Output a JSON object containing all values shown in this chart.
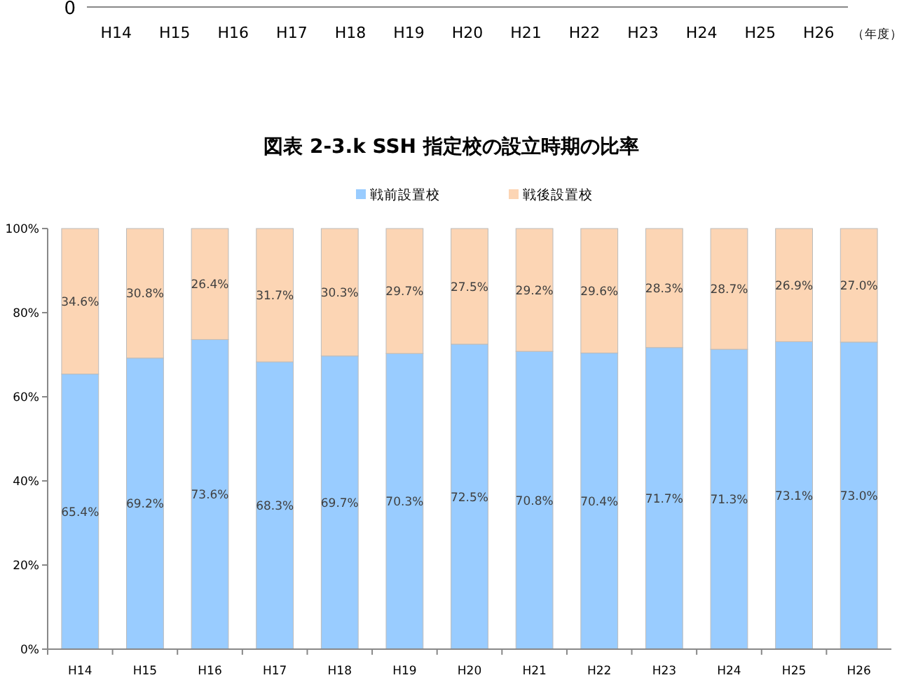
{
  "chart_data": [
    {
      "type": "other",
      "annotations": [
        "0",
        "H14",
        "H15",
        "H16",
        "H17",
        "H18",
        "H19",
        "H20",
        "H21",
        "H22",
        "H23",
        "H24",
        "H25",
        "H26",
        "（年度）"
      ]
    },
    {
      "type": "bar",
      "stacked": true,
      "title": "図表 2-3.k SSH 指定校の設立時期の比率",
      "legend": "top",
      "categories": [
        "H14",
        "H15",
        "H16",
        "H17",
        "H18",
        "H19",
        "H20",
        "H21",
        "H22",
        "H23",
        "H24",
        "H25",
        "H26"
      ],
      "ylim": [
        0,
        100
      ],
      "yticks": [
        {
          "value": 0,
          "label": "0%"
        },
        {
          "value": 20,
          "label": "20%"
        },
        {
          "value": 40,
          "label": "40%"
        },
        {
          "value": 60,
          "label": "60%"
        },
        {
          "value": 80,
          "label": "80%"
        },
        {
          "value": 100,
          "label": "100%"
        }
      ],
      "series": [
        {
          "name": "戦前設置校",
          "color": "#99ccff",
          "values": [
            65.4,
            69.2,
            73.6,
            68.3,
            69.7,
            70.3,
            72.5,
            70.8,
            70.4,
            71.7,
            71.3,
            73.1,
            73.0
          ],
          "value_labels": [
            "65.4%",
            "69.2%",
            "73.6%",
            "68.3%",
            "69.7%",
            "70.3%",
            "72.5%",
            "70.8%",
            "70.4%",
            "71.7%",
            "71.3%",
            "73.1%",
            "73.0%"
          ]
        },
        {
          "name": "戦後設置校",
          "color": "#fcd5b4",
          "values": [
            34.6,
            30.8,
            26.4,
            31.7,
            30.3,
            29.7,
            27.5,
            29.2,
            29.6,
            28.3,
            28.7,
            26.9,
            27.0
          ],
          "value_labels": [
            "34.6%",
            "30.8%",
            "26.4%",
            "31.7%",
            "30.3%",
            "29.7%",
            "27.5%",
            "29.2%",
            "29.6%",
            "28.3%",
            "28.7%",
            "26.9%",
            "27.0%"
          ]
        }
      ]
    }
  ]
}
